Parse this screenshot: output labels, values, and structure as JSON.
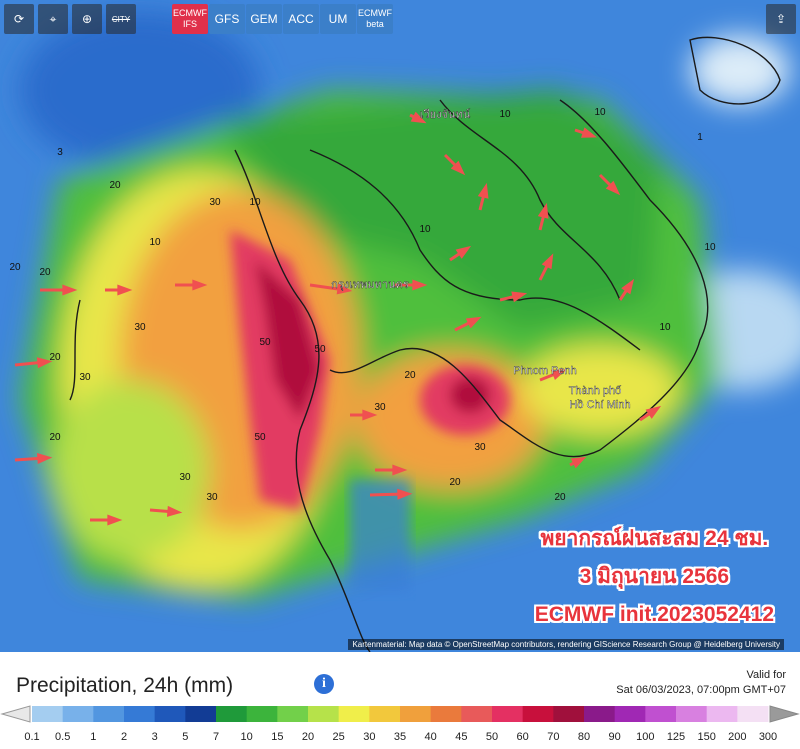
{
  "toolbar": {
    "city": "CITY",
    "models": [
      "ECMWF IFS",
      "GFS",
      "GEM",
      "ACC",
      "UM",
      "ECMWF beta"
    ],
    "active_model": 0
  },
  "caption": [
    "พยากรณ์ฝนสะสม 24 ชม.",
    "3 มิถุนายน 2566",
    "ECMWF init.2023052412"
  ],
  "attribution": "Kartenmaterial: Map data © OpenStreetMap contributors, rendering GIScience Research Group @ Heidelberg University",
  "places": [
    "กรุงเทพมหานคร",
    "Phnom Penh",
    "Thành phố",
    "Hồ Chí Minh",
    "เวียงจันทน์"
  ],
  "map_labels": [
    20,
    20,
    20,
    30,
    30,
    50,
    50,
    30,
    10,
    10,
    10,
    10,
    20,
    30,
    50,
    30,
    20,
    20,
    30,
    10,
    10,
    20,
    20,
    30,
    10,
    1,
    3
  ],
  "legend": {
    "title": "Precipitation, 24h (mm)",
    "valid_label": "Valid for",
    "valid_time": "Sat 06/03/2023, 07:00pm GMT+07",
    "labels": [
      0.1,
      0.5,
      1,
      2,
      3,
      5,
      7,
      10,
      15,
      20,
      25,
      30,
      35,
      40,
      45,
      50,
      60,
      70,
      80,
      90,
      100,
      125,
      150,
      200,
      300
    ],
    "colors": [
      "#a4cdf0",
      "#78b1ea",
      "#5296e0",
      "#357ad6",
      "#1f58ba",
      "#123c95",
      "#1f9a3a",
      "#3cb43c",
      "#72d04a",
      "#b6e24a",
      "#f0ee4a",
      "#f2c83c",
      "#f0a03c",
      "#ea7a3c",
      "#e85a5a",
      "#e43062",
      "#c8103c",
      "#a0103c",
      "#8a1a8a",
      "#a028b4",
      "#c050d0",
      "#d880e0",
      "#ecb8f0",
      "#f4e0f4"
    ]
  }
}
